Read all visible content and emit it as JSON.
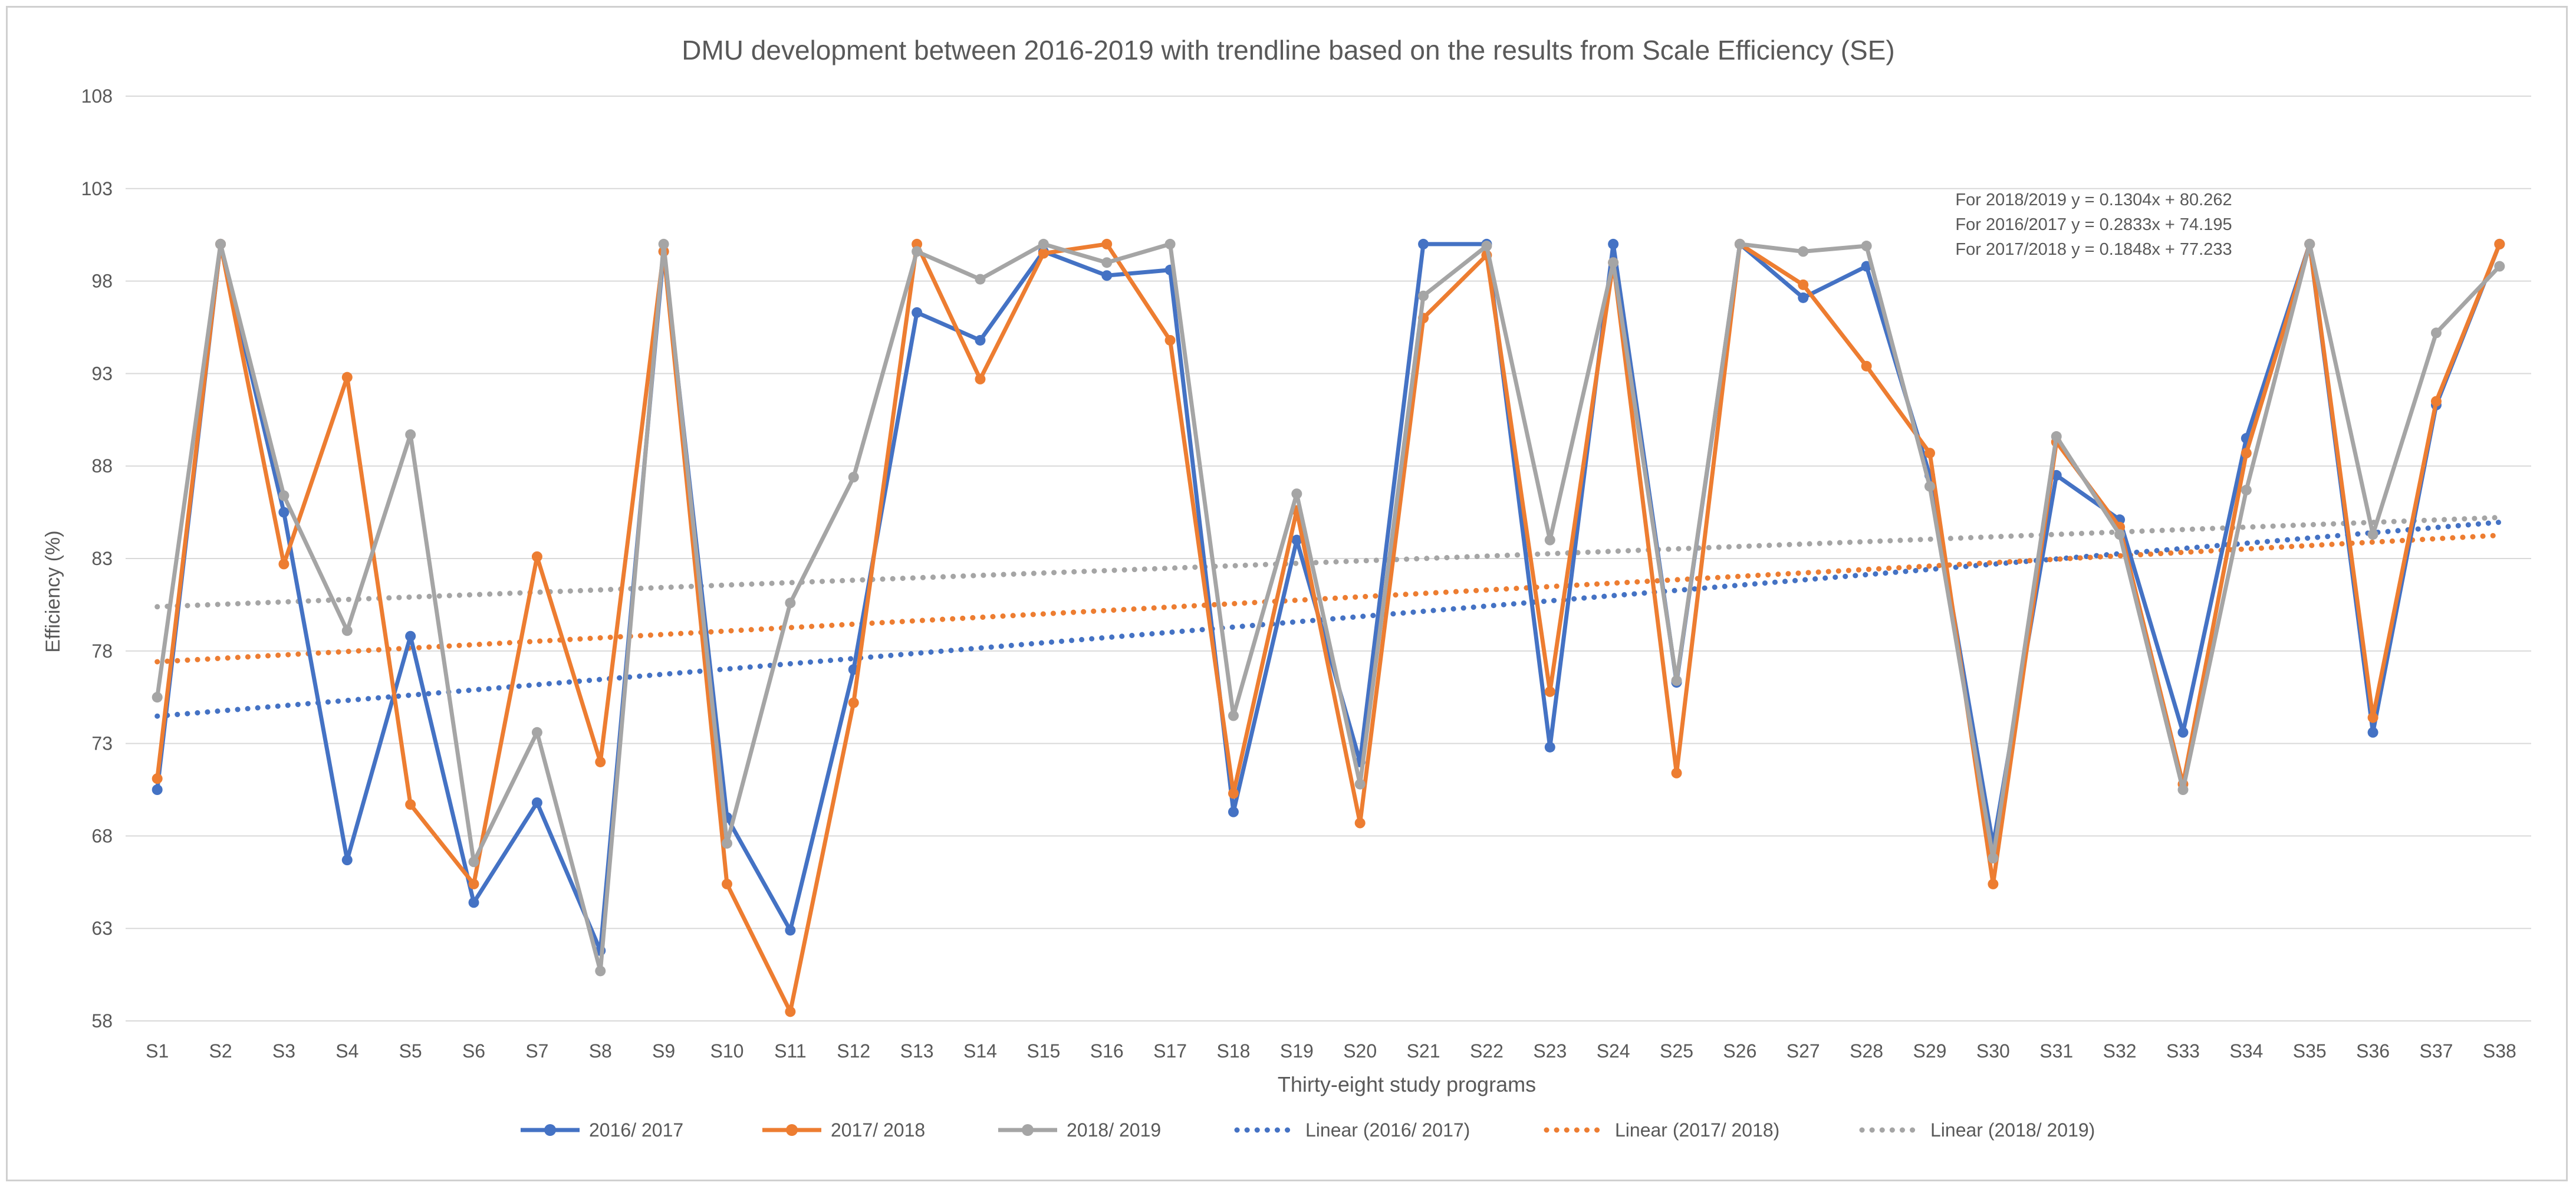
{
  "chart_data": {
    "type": "line",
    "title": "DMU development between 2016-2019 with trendline based on the results from Scale Efficiency (SE)",
    "xlabel": "Thirty-eight study programs",
    "ylabel": "Efficiency (%)",
    "ylim": [
      58,
      108
    ],
    "yticks": [
      58,
      63,
      68,
      73,
      78,
      83,
      88,
      93,
      98,
      103,
      108
    ],
    "grid": true,
    "legend_position": "bottom",
    "categories": [
      "S1",
      "S2",
      "S3",
      "S4",
      "S5",
      "S6",
      "S7",
      "S8",
      "S9",
      "S10",
      "S11",
      "S12",
      "S13",
      "S14",
      "S15",
      "S16",
      "S17",
      "S18",
      "S19",
      "S20",
      "S21",
      "S22",
      "S23",
      "S24",
      "S25",
      "S26",
      "S27",
      "S28",
      "S29",
      "S30",
      "S31",
      "S32",
      "S33",
      "S34",
      "S35",
      "S36",
      "S37",
      "S38"
    ],
    "series": [
      {
        "name": "2016/ 2017",
        "color": "#4472c4",
        "values": [
          70.5,
          100,
          85.5,
          66.7,
          78.8,
          64.4,
          69.8,
          61.8,
          99.6,
          69,
          62.9,
          77,
          96.3,
          94.8,
          99.6,
          98.3,
          98.6,
          69.3,
          84,
          72,
          100,
          100,
          72.8,
          100,
          76.3,
          100,
          97.1,
          98.8,
          87.5,
          67.5,
          87.5,
          85.1,
          73.6,
          89.5,
          100,
          73.6,
          91.3,
          100
        ]
      },
      {
        "name": "2017/ 2018",
        "color": "#ed7d31",
        "values": [
          71.1,
          100,
          82.7,
          92.8,
          69.7,
          65.4,
          83.1,
          72,
          99.6,
          65.4,
          58.5,
          75.2,
          100,
          92.7,
          99.5,
          100,
          94.8,
          70.3,
          85.6,
          68.7,
          96,
          99.4,
          75.8,
          99,
          71.4,
          100,
          97.8,
          93.4,
          88.7,
          65.4,
          89.3,
          84.7,
          70.8,
          88.7,
          100,
          74.4,
          91.5,
          100
        ]
      },
      {
        "name": "2018/ 2019",
        "color": "#a5a5a5",
        "values": [
          75.5,
          100,
          86.4,
          79.1,
          89.7,
          66.6,
          73.6,
          60.7,
          100,
          67.6,
          80.6,
          87.4,
          99.6,
          98.1,
          100,
          99,
          100,
          74.5,
          86.5,
          70.8,
          97.2,
          99.9,
          84,
          99,
          76.4,
          100,
          99.6,
          99.9,
          86.9,
          66.8,
          89.6,
          84.3,
          70.5,
          86.7,
          100,
          84.3,
          95.2,
          98.8
        ]
      }
    ],
    "trendlines": [
      {
        "name": "Linear (2016/ 2017)",
        "color": "#4472c4",
        "slope": 0.2833,
        "intercept": 74.195,
        "equation": "For 2016/2017 y = 0.2833x + 74.195"
      },
      {
        "name": "Linear (2017/ 2018)",
        "color": "#ed7d31",
        "slope": 0.1848,
        "intercept": 77.233,
        "equation": "For 2017/2018 y = 0.1848x + 77.233"
      },
      {
        "name": "Linear (2018/ 2019)",
        "color": "#a5a5a5",
        "slope": 0.1304,
        "intercept": 80.262,
        "equation": "For 2018/2019 y = 0.1304x + 80.262"
      }
    ],
    "annotations": [
      "For 2018/2019 y = 0.1304x + 80.262",
      "For 2016/2017 y = 0.2833x + 74.195",
      "For 2017/2018 y = 0.1848x + 77.233"
    ]
  }
}
